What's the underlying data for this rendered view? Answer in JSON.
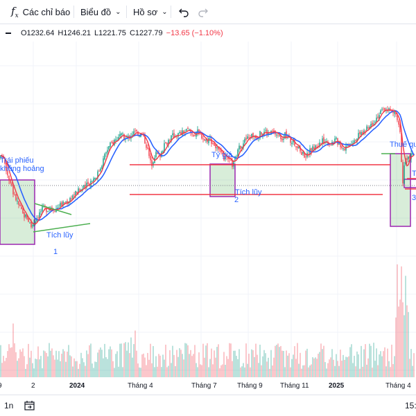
{
  "toolbar": {
    "indicators_label": "Các chỉ báo",
    "chart_label": "Biểu đồ",
    "profile_label": "Hồ sơ"
  },
  "legend": {
    "open": "O1232.64",
    "high": "H1246.21",
    "low": "L1221.75",
    "close": "C1227.79",
    "change": "−13.65 (−1.10%)",
    "change_color": "#f23645"
  },
  "annotations": {
    "bond": "Trái phiếu",
    "crisis": "khủng hoảng",
    "accum1": "Tích lũy",
    "num1": "1",
    "fx": "Tỷ giá",
    "accum2": "Tích lũy",
    "num2": "2",
    "tariff": "Thuế qu",
    "t_partial": "T",
    "num3": "3"
  },
  "bottombar": {
    "interval": "1n",
    "time": "15:"
  },
  "colors": {
    "up": "#089981",
    "down": "#f23645",
    "ma_fast": "#f23645",
    "ma_slow": "#2962ff",
    "channel": "#f23645",
    "trend": "#4caf50",
    "box_border": "#9c27b0",
    "box_fill": "rgba(76,175,80,0.22)",
    "annotation": "#2962ff"
  },
  "chart_data": {
    "type": "candlestick",
    "price_axis": "hidden",
    "last_close": 1227.79,
    "x_tick_labels": [
      "9",
      "2",
      "2024",
      "Tháng 4",
      "Tháng 7",
      "Tháng 9",
      "Tháng 11",
      "2025",
      "Tháng 4"
    ],
    "series": [
      {
        "name": "",
        "kind": "price_candles"
      },
      {
        "name": "",
        "kind": "moving_average_fast"
      },
      {
        "name": "",
        "kind": "moving_average_slow"
      },
      {
        "name": "",
        "kind": "volume"
      }
    ],
    "price_path": [
      [
        0,
        1150
      ],
      [
        4,
        1160
      ],
      [
        9,
        1135
      ],
      [
        15,
        1110
      ],
      [
        21,
        1090
      ],
      [
        27,
        1075
      ],
      [
        33,
        1060
      ],
      [
        39,
        1055
      ],
      [
        45,
        1040
      ],
      [
        50,
        1050
      ],
      [
        56,
        1060
      ],
      [
        62,
        1070
      ],
      [
        68,
        1068
      ],
      [
        74,
        1072
      ],
      [
        80,
        1068
      ],
      [
        86,
        1075
      ],
      [
        92,
        1078
      ],
      [
        98,
        1082
      ],
      [
        104,
        1090
      ],
      [
        110,
        1096
      ],
      [
        116,
        1100
      ],
      [
        122,
        1104
      ],
      [
        128,
        1110
      ],
      [
        134,
        1118
      ],
      [
        140,
        1125
      ],
      [
        146,
        1140
      ],
      [
        152,
        1160
      ],
      [
        158,
        1172
      ],
      [
        164,
        1180
      ],
      [
        170,
        1185
      ],
      [
        176,
        1188
      ],
      [
        182,
        1182
      ],
      [
        188,
        1190
      ],
      [
        194,
        1195
      ],
      [
        200,
        1192
      ],
      [
        206,
        1190
      ],
      [
        212,
        1170
      ],
      [
        218,
        1140
      ],
      [
        224,
        1160
      ],
      [
        230,
        1155
      ],
      [
        236,
        1170
      ],
      [
        242,
        1180
      ],
      [
        248,
        1188
      ],
      [
        254,
        1190
      ],
      [
        260,
        1192
      ],
      [
        266,
        1195
      ],
      [
        272,
        1198
      ],
      [
        278,
        1190
      ],
      [
        284,
        1195
      ],
      [
        290,
        1190
      ],
      [
        296,
        1180
      ],
      [
        302,
        1185
      ],
      [
        308,
        1175
      ],
      [
        314,
        1165
      ],
      [
        320,
        1155
      ],
      [
        326,
        1150
      ],
      [
        332,
        1145
      ],
      [
        336,
        1140
      ],
      [
        340,
        1155
      ],
      [
        346,
        1170
      ],
      [
        352,
        1180
      ],
      [
        358,
        1185
      ],
      [
        364,
        1190
      ],
      [
        370,
        1188
      ],
      [
        376,
        1192
      ],
      [
        382,
        1196
      ],
      [
        388,
        1192
      ],
      [
        394,
        1195
      ],
      [
        400,
        1190
      ],
      [
        406,
        1185
      ],
      [
        412,
        1190
      ],
      [
        418,
        1180
      ],
      [
        424,
        1178
      ],
      [
        430,
        1168
      ],
      [
        436,
        1160
      ],
      [
        442,
        1155
      ],
      [
        448,
        1165
      ],
      [
        454,
        1170
      ],
      [
        460,
        1175
      ],
      [
        466,
        1180
      ],
      [
        472,
        1178
      ],
      [
        478,
        1176
      ],
      [
        484,
        1182
      ],
      [
        490,
        1175
      ],
      [
        496,
        1168
      ],
      [
        502,
        1175
      ],
      [
        508,
        1180
      ],
      [
        514,
        1185
      ],
      [
        520,
        1192
      ],
      [
        526,
        1196
      ],
      [
        532,
        1202
      ],
      [
        538,
        1212
      ],
      [
        544,
        1220
      ],
      [
        550,
        1228
      ],
      [
        556,
        1232
      ],
      [
        560,
        1232
      ],
      [
        564,
        1228
      ],
      [
        570,
        1225
      ],
      [
        574,
        1215
      ],
      [
        578,
        1190
      ],
      [
        580,
        1100
      ],
      [
        582,
        1125
      ],
      [
        584,
        1145
      ],
      [
        586,
        1150
      ],
      [
        590,
        1155
      ],
      [
        594,
        1158
      ],
      [
        600,
        1158
      ]
    ]
  }
}
